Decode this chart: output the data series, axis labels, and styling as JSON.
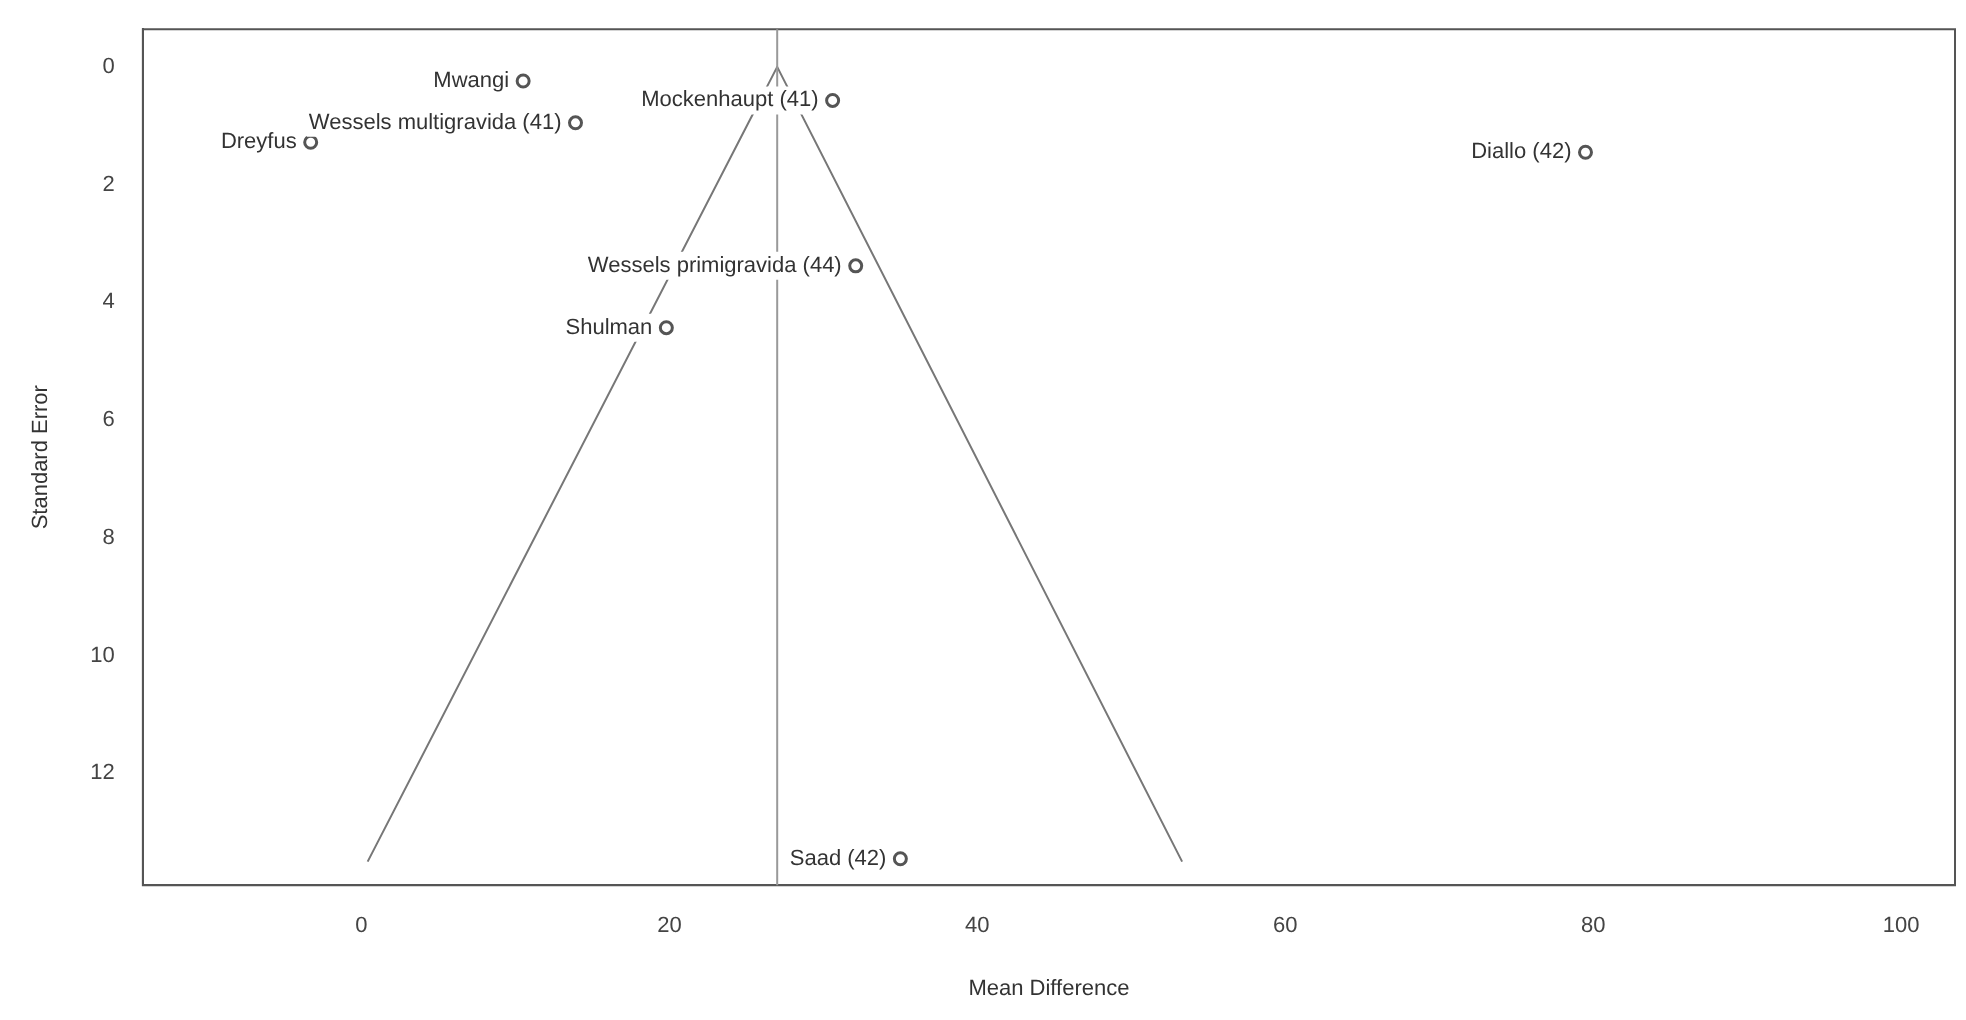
{
  "chart_data": {
    "type": "scatter",
    "xlabel": "Mean Difference",
    "ylabel": "Standard Error",
    "xlim": [
      -14.2,
      103.5
    ],
    "ylim": [
      13.9,
      -0.64
    ],
    "xticks": [
      0,
      20,
      40,
      60,
      80,
      100
    ],
    "yticks": [
      0,
      2,
      4,
      6,
      8,
      10,
      12
    ],
    "grid": false,
    "legend": false,
    "marker": "circle",
    "series": [
      {
        "color": "#555555",
        "x": [
          10.5,
          30.6,
          13.9,
          -3.3,
          79.5,
          32.1,
          19.8,
          35.0
        ],
        "values": [
          0.24,
          0.57,
          0.95,
          1.28,
          1.45,
          3.38,
          4.43,
          13.45
        ]
      },
      {
        "type": "line",
        "color": "#777777",
        "marker": "none",
        "x": [
          0.4,
          27,
          53.3
        ],
        "values": [
          13.5,
          0,
          13.5
        ]
      }
    ],
    "ref_lines": [
      {
        "axis": "x",
        "value": 27,
        "color": "#999999"
      }
    ],
    "annotations": [
      {
        "text": "Mwangi",
        "x": 10.5,
        "y": 0.24
      },
      {
        "text": "Mockenhaupt (41)",
        "x": 30.6,
        "y": 0.57
      },
      {
        "text": "Wessels multigravida (41)",
        "x": 13.9,
        "y": 0.95
      },
      {
        "text": "Dreyfus",
        "x": -3.3,
        "y": 1.28
      },
      {
        "text": "Diallo (42)",
        "x": 79.5,
        "y": 1.45
      },
      {
        "text": "Wessels primigravida (44)",
        "x": 32.1,
        "y": 3.38
      },
      {
        "text": "Shulman",
        "x": 19.8,
        "y": 4.43
      },
      {
        "text": "Saad (42)",
        "x": 35.0,
        "y": 13.45
      }
    ]
  }
}
